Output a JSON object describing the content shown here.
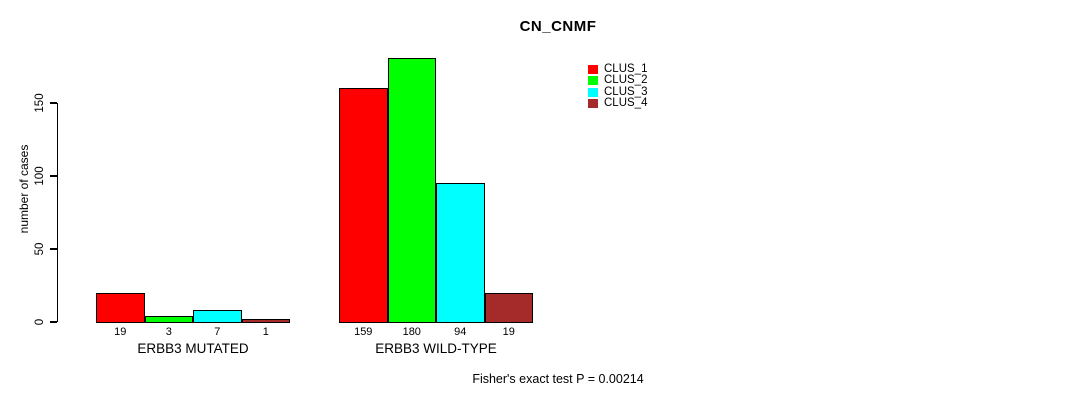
{
  "title": "CN_CNMF",
  "chart_data": {
    "type": "bar",
    "title": "CN_CNMF",
    "xlabel": "",
    "ylabel": "number of cases",
    "yticks": [
      0,
      50,
      100,
      150
    ],
    "ylim": [
      0,
      180
    ],
    "grid": false,
    "legend_position": "top-right",
    "series": [
      {
        "name": "CLUS_1",
        "color": "#FF0000",
        "values": [
          19,
          159
        ]
      },
      {
        "name": "CLUS_2",
        "color": "#00FF00",
        "values": [
          3,
          180
        ]
      },
      {
        "name": "CLUS_3",
        "color": "#00FFFF",
        "values": [
          7,
          94
        ]
      },
      {
        "name": "CLUS_4",
        "color": "#A52A2A",
        "values": [
          1,
          19
        ]
      }
    ],
    "groups": [
      {
        "label": "ERBB3 MUTATED",
        "values": [
          19,
          3,
          7,
          1
        ]
      },
      {
        "label": "ERBB3 WILD-TYPE",
        "values": [
          159,
          180,
          94,
          19
        ]
      }
    ],
    "annotation": "Fisher's exact test P = 0.00214"
  }
}
